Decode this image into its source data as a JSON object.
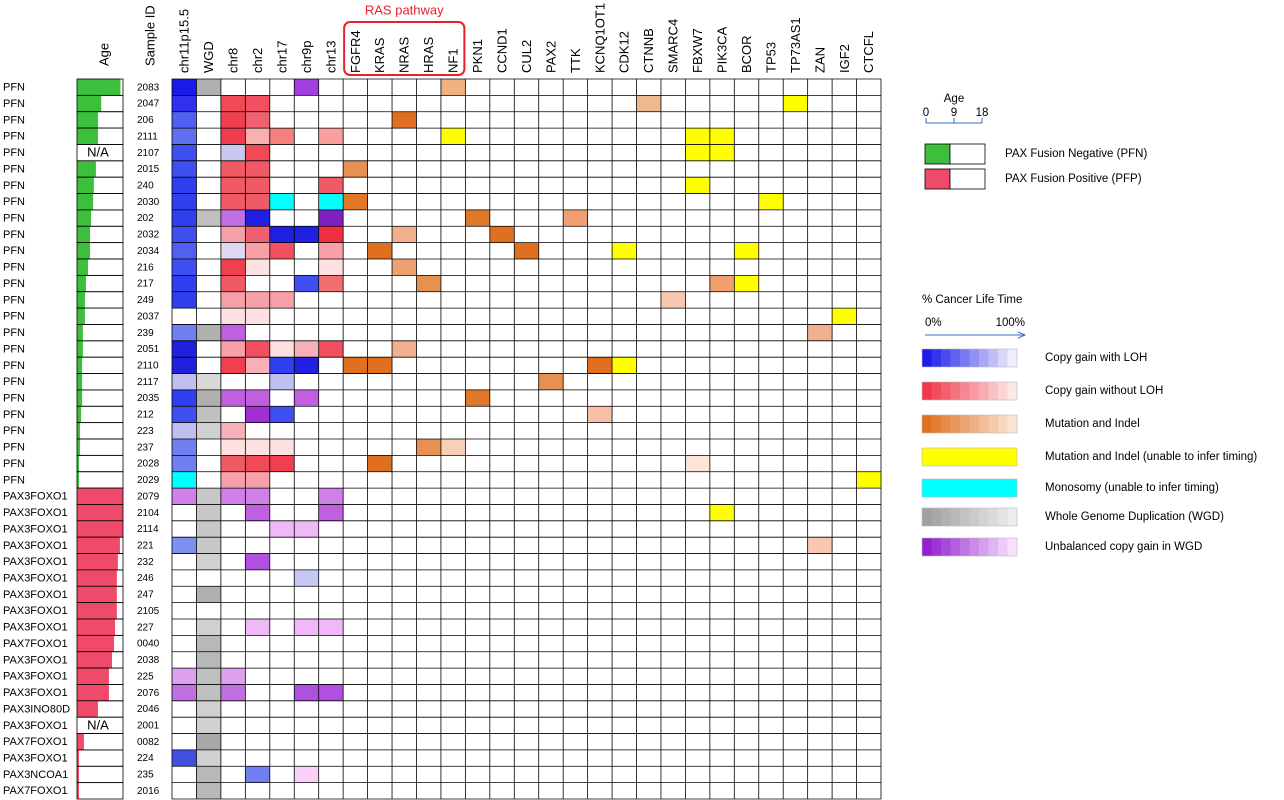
{
  "chart_data": {
    "type": "heatmap",
    "age_column_header": "Age",
    "sample_id_header": "Sample ID",
    "columns": [
      "chr11p15.5",
      "WGD",
      "chr8",
      "chr2",
      "chr17",
      "chr9p",
      "chr13",
      "FGFR4",
      "KRAS",
      "NRAS",
      "HRAS",
      "NF1",
      "PKN1",
      "CCND1",
      "CUL2",
      "PAX2",
      "TTK",
      "KCNQ1OT1",
      "CDK12",
      "CTNNB",
      "SMARC4",
      "FBXW7",
      "PIK3CA",
      "BCOR",
      "TP53",
      "TP73AS1",
      "ZAN",
      "IGF2",
      "CTCFL"
    ],
    "column_group": {
      "label": "RAS pathway",
      "from": "FGFR4",
      "to": "NF1",
      "color": "#e8202a"
    },
    "xlabel": "Age",
    "xlim": [
      0,
      18
    ],
    "xticks": [
      0,
      9,
      18
    ],
    "groups": [
      {
        "name": "PAX Fusion Negative (PFN)",
        "color": "#3cc03c",
        "rows": [
          {
            "label": "PFN",
            "sample_id": "2083",
            "age": 17,
            "cells": {
              "chr11p15.5": "#1a1ae8",
              "WGD": "#b0b0b0",
              "chr9p": "#a040e0",
              "NF1": "#f0b080"
            }
          },
          {
            "label": "PFN",
            "sample_id": "2047",
            "age": 9.5,
            "cells": {
              "chr11p15.5": "#3030f0",
              "chr8": "#f04a55",
              "chr2": "#f05060",
              "CTNNB": "#f0b890",
              "TP73AS1": "#ffff00"
            }
          },
          {
            "label": "PFN",
            "sample_id": "206",
            "age": 8.2,
            "cells": {
              "chr11p15.5": "#5060f0",
              "chr8": "#f04050",
              "chr2": "#f06070",
              "NRAS": "#e07020"
            }
          },
          {
            "label": "PFN",
            "sample_id": "2111",
            "age": 8.2,
            "cells": {
              "chr11p15.5": "#6070f0",
              "chr8": "#f03c4c",
              "chr2": "#f8b0b0",
              "chr17": "#f48080",
              "chr13": "#f8a0a0",
              "NF1": "#ffff00",
              "FBXW7": "#ffff00",
              "PIK3CA": "#ffff00"
            }
          },
          {
            "label": "PFN",
            "sample_id": "2107",
            "age": null,
            "age_label": "N/A",
            "cells": {
              "chr11p15.5": "#4050f0",
              "chr8": "#c8c8f0",
              "chr2": "#f04a55",
              "FBXW7": "#ffff00",
              "PIK3CA": "#ffff00"
            }
          },
          {
            "label": "PFN",
            "sample_id": "2015",
            "age": 7.4,
            "cells": {
              "chr11p15.5": "#4050f0",
              "chr8": "#f05a64",
              "chr2": "#f05a64",
              "FGFR4": "#e89050"
            }
          },
          {
            "label": "PFN",
            "sample_id": "240",
            "age": 6.6,
            "cells": {
              "chr11p15.5": "#3040f0",
              "chr8": "#f05a64",
              "chr2": "#f05a64",
              "chr13": "#f05a64",
              "FBXW7": "#ffff00"
            }
          },
          {
            "label": "PFN",
            "sample_id": "2030",
            "age": 6.3,
            "cells": {
              "chr11p15.5": "#3040f0",
              "chr8": "#f05a64",
              "chr2": "#f05a64",
              "chr17": "#00ffff",
              "chr13": "#00ffff",
              "FGFR4": "#e07828",
              "TP53": "#ffff00"
            }
          },
          {
            "label": "PFN",
            "sample_id": "202",
            "age": 5.5,
            "cells": {
              "chr11p15.5": "#3040f0",
              "WGD": "#c0c0c0",
              "chr8": "#c070e0",
              "chr2": "#2020e0",
              "chr13": "#8020c0",
              "PKN1": "#e07828",
              "TTK": "#f0a070"
            }
          },
          {
            "label": "PFN",
            "sample_id": "2032",
            "age": 5.1,
            "cells": {
              "chr11p15.5": "#4050f0",
              "chr8": "#f8a0a8",
              "chr2": "#f06070",
              "chr17": "#2020e0",
              "chr9p": "#2020e0",
              "chr13": "#f03040",
              "NRAS": "#f0b090",
              "CCND1": "#e07020"
            }
          },
          {
            "label": "PFN",
            "sample_id": "2034",
            "age": 5.1,
            "cells": {
              "chr11p15.5": "#5060f0",
              "chr8": "#e0d8f0",
              "chr2": "#f8a0a8",
              "chr17": "#f05060",
              "chr13": "#f8a0a8",
              "KRAS": "#e07020",
              "CUL2": "#e07020",
              "CDK12": "#ffff00",
              "BCOR": "#ffff00"
            }
          },
          {
            "label": "PFN",
            "sample_id": "216",
            "age": 4.3,
            "cells": {
              "chr11p15.5": "#4050f0",
              "chr8": "#f04050",
              "chr2": "#fde0e0",
              "chr13": "#fde0e0",
              "NRAS": "#f0a070"
            }
          },
          {
            "label": "PFN",
            "sample_id": "217",
            "age": 3.5,
            "cells": {
              "chr11p15.5": "#3040f0",
              "chr8": "#f05a64",
              "chr9p": "#4050f0",
              "chr13": "#f07070",
              "HRAS": "#e89050",
              "PIK3CA": "#f0a070",
              "BCOR": "#ffff00"
            }
          },
          {
            "label": "PFN",
            "sample_id": "249",
            "age": 3.1,
            "cells": {
              "chr11p15.5": "#3040f0",
              "chr8": "#f8a0a8",
              "chr2": "#f8a0a8",
              "chr17": "#f8a0a8",
              "SMARC4": "#f8c8b0"
            }
          },
          {
            "label": "PFN",
            "sample_id": "2037",
            "age": 3.1,
            "cells": {
              "chr8": "#fde0e0",
              "chr2": "#fde0e0",
              "IGF2": "#ffff00"
            }
          },
          {
            "label": "PFN",
            "sample_id": "239",
            "age": 2.3,
            "cells": {
              "chr11p15.5": "#7080f0",
              "WGD": "#b0b0b0",
              "chr8": "#c060e0",
              "ZAN": "#f0b090"
            }
          },
          {
            "label": "PFN",
            "sample_id": "2051",
            "age": 2.3,
            "cells": {
              "chr11p15.5": "#2020e0",
              "chr8": "#f8a0a8",
              "chr2": "#f05060",
              "chr17": "#fde0e0",
              "chr9p": "#f8b0b8",
              "chr13": "#f05060",
              "NRAS": "#f0b090"
            }
          },
          {
            "label": "PFN",
            "sample_id": "2110",
            "age": 2.0,
            "cells": {
              "chr11p15.5": "#2020e0",
              "chr8": "#f04050",
              "chr2": "#f8b0b8",
              "chr17": "#3040f0",
              "chr9p": "#2020e0",
              "FGFR4": "#e07020",
              "KRAS": "#e07020",
              "KCNQ1OT1": "#e07020",
              "CDK12": "#ffff00"
            }
          },
          {
            "label": "PFN",
            "sample_id": "2117",
            "age": 2.0,
            "cells": {
              "chr11p15.5": "#c0c0f0",
              "WGD": "#d8d8d8",
              "chr17": "#c0c0f0",
              "PAX2": "#e89050"
            }
          },
          {
            "label": "PFN",
            "sample_id": "2035",
            "age": 2.0,
            "cells": {
              "chr11p15.5": "#3040f0",
              "WGD": "#b0b0b0",
              "chr8": "#c060e0",
              "chr2": "#c060e0",
              "chr9p": "#c060e0",
              "PKN1": "#e07828"
            }
          },
          {
            "label": "PFN",
            "sample_id": "212",
            "age": 1.6,
            "cells": {
              "chr11p15.5": "#4050f0",
              "WGD": "#c0c0c0",
              "chr2": "#a030d0",
              "chr17": "#4050f0",
              "KCNQ1OT1": "#f8c0a8"
            }
          },
          {
            "label": "PFN",
            "sample_id": "223",
            "age": 1.2,
            "cells": {
              "chr11p15.5": "#c0c0f0",
              "WGD": "#d0d0d0",
              "chr8": "#f8b0b8"
            }
          },
          {
            "label": "PFN",
            "sample_id": "237",
            "age": 1.2,
            "cells": {
              "chr11p15.5": "#7080f0",
              "chr8": "#fde0e0",
              "chr2": "#fde0e0",
              "chr17": "#fde0e0",
              "HRAS": "#e89050",
              "NF1": "#f8d0b8"
            }
          },
          {
            "label": "PFN",
            "sample_id": "2028",
            "age": 0.8,
            "cells": {
              "chr11p15.5": "#7080f0",
              "chr8": "#f05a64",
              "chr2": "#f04a55",
              "chr17": "#f04050",
              "KRAS": "#e07020",
              "FBXW7": "#fde4d8"
            }
          },
          {
            "label": "PFN",
            "sample_id": "2029",
            "age": 0.8,
            "cells": {
              "chr11p15.5": "#00ffff",
              "chr8": "#f8a0a8",
              "chr2": "#f8a0a8",
              "CTCFL": "#ffff00"
            }
          }
        ]
      },
      {
        "name": "PAX Fusion Positive (PFP)",
        "color": "#f04a6a",
        "rows": [
          {
            "label": "PAX3FOXO1",
            "sample_id": "2079",
            "age": 18,
            "cells": {
              "chr11p15.5": "#d080e8",
              "WGD": "#c8c8c8",
              "chr8": "#d080e8",
              "chr2": "#d080e8",
              "chr13": "#d080e8"
            }
          },
          {
            "label": "PAX3FOXO1",
            "sample_id": "2104",
            "age": 18,
            "cells": {
              "WGD": "#c8c8c8",
              "chr2": "#c060e0",
              "chr13": "#c060e0",
              "PIK3CA": "#ffff00"
            }
          },
          {
            "label": "PAX3FOXO1",
            "sample_id": "2114",
            "age": 18,
            "cells": {
              "WGD": "#c8c8c8",
              "chr17": "#f0b8f8",
              "chr9p": "#f0b8f8"
            }
          },
          {
            "label": "PAX3FOXO1",
            "sample_id": "221",
            "age": 16.8,
            "cells": {
              "chr11p15.5": "#8090f0",
              "WGD": "#c8c8c8",
              "ZAN": "#f8c8b0"
            }
          },
          {
            "label": "PAX3FOXO1",
            "sample_id": "232",
            "age": 16,
            "cells": {
              "WGD": "#d0d0d0",
              "chr2": "#b050e0"
            }
          },
          {
            "label": "PAX3FOXO1",
            "sample_id": "246",
            "age": 15.6,
            "cells": {
              "chr9p": "#c8c8f8"
            }
          },
          {
            "label": "PAX3FOXO1",
            "sample_id": "247",
            "age": 15.6,
            "cells": {
              "WGD": "#b0b0b0"
            }
          },
          {
            "label": "PAX3FOXO1",
            "sample_id": "2105",
            "age": 15.6,
            "cells": {}
          },
          {
            "label": "PAX3FOXO1",
            "sample_id": "227",
            "age": 14.9,
            "cells": {
              "WGD": "#d0d0d0",
              "chr2": "#f0b8f8",
              "chr9p": "#f0b8f8",
              "chr13": "#f0b8f8"
            }
          },
          {
            "label": "PAX7FOXO1",
            "sample_id": "0040",
            "age": 14.5,
            "cells": {
              "WGD": "#b8b8b8"
            }
          },
          {
            "label": "PAX3FOXO1",
            "sample_id": "2038",
            "age": 13.7,
            "cells": {
              "WGD": "#b8b8b8"
            }
          },
          {
            "label": "PAX3FOXO1",
            "sample_id": "225",
            "age": 12.5,
            "cells": {
              "chr11p15.5": "#e0a0f0",
              "WGD": "#c0c0c0",
              "chr8": "#e0a0f0"
            }
          },
          {
            "label": "PAX3FOXO1",
            "sample_id": "2076",
            "age": 12.5,
            "cells": {
              "chr11p15.5": "#c070e0",
              "WGD": "#c0c0c0",
              "chr8": "#c070e0",
              "chr9p": "#b050e0",
              "chr13": "#b050e0"
            }
          },
          {
            "label": "PAX3INO80D",
            "sample_id": "2046",
            "age": 8.2,
            "cells": {
              "WGD": "#d0d0d0"
            }
          },
          {
            "label": "PAX3FOXO1",
            "sample_id": "2001",
            "age": null,
            "age_label": "N/A",
            "cells": {
              "WGD": "#d0d0d0"
            }
          },
          {
            "label": "PAX7FOXO1",
            "sample_id": "0082",
            "age": 2.7,
            "cells": {
              "WGD": "#a8a8a8"
            }
          },
          {
            "label": "PAX3FOXO1",
            "sample_id": "224",
            "age": 0.8,
            "cells": {
              "chr11p15.5": "#4050e0",
              "WGD": "#d0d0d0"
            }
          },
          {
            "label": "PAX3NCOA1",
            "sample_id": "235",
            "age": 0.8,
            "cells": {
              "WGD": "#b8b8b8",
              "chr2": "#7080f0",
              "chr9p": "#f8d0f8"
            }
          },
          {
            "label": "PAX7FOXO1",
            "sample_id": "2016",
            "age": 0.8,
            "cells": {
              "WGD": "#b8b8b8"
            }
          }
        ]
      }
    ],
    "timing_legend": {
      "title": "% Cancer Life Time",
      "color": "#3070c0",
      "ticks": [
        {
          "value": 0,
          "label": "0%"
        },
        {
          "value": 100,
          "label": "100%"
        }
      ]
    },
    "categories": [
      {
        "name": "Copy gain with LOH",
        "colors": [
          "#1c1ce8",
          "#eeeefc"
        ]
      },
      {
        "name": "Copy gain without LOH",
        "colors": [
          "#f03848",
          "#fde8e8"
        ]
      },
      {
        "name": "Mutation and Indel",
        "colors": [
          "#e07020",
          "#fbe4d4"
        ]
      },
      {
        "name": "Mutation and Indel (unable to infer timing)",
        "colors": [
          "#ffff00"
        ]
      },
      {
        "name": "Monosomy (unable to infer timing)",
        "colors": [
          "#00ffff"
        ]
      },
      {
        "name": "Whole Genome Duplication (WGD)",
        "colors": [
          "#a0a0a0",
          "#ececec"
        ]
      },
      {
        "name": "Unbalanced copy gain in WGD",
        "colors": [
          "#9020d0",
          "#f8e0fc"
        ]
      }
    ]
  }
}
